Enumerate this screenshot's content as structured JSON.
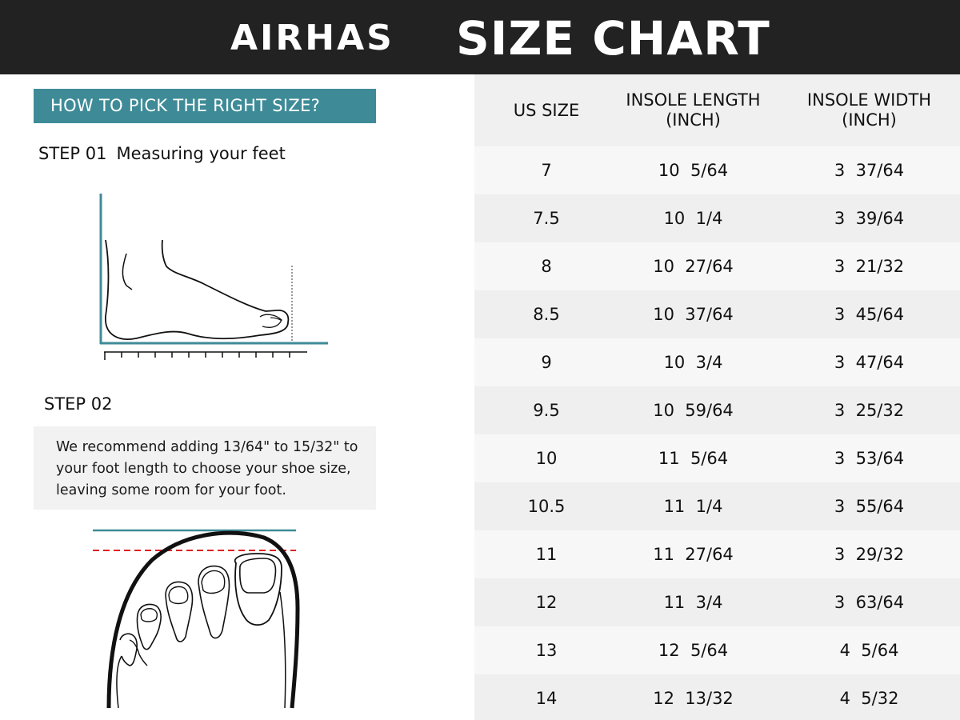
{
  "header": {
    "brand": "AIRHAS",
    "title": "SIZE CHART"
  },
  "guide": {
    "howto_label": "HOW TO PICK THE RIGHT SIZE?",
    "step1_number": "STEP 01",
    "step1_text": "Measuring your feet",
    "step2_number": "STEP 02",
    "recommend_text": "We recommend adding 13/64\" to 15/32\" to your foot length to choose your shoe size, leaving some room for your foot."
  },
  "colors": {
    "header_bg": "#222222",
    "accent_teal": "#3e8b97",
    "guide_line_red": "#e02020"
  },
  "icons": {
    "side_view": "foot-side-measure-icon",
    "top_view": "foot-toes-top-icon"
  },
  "table": {
    "headers": [
      "US SIZE",
      "INSOLE LENGTH\n(INCH)",
      "INSOLE WIDTH\n(INCH)"
    ],
    "rows": [
      [
        "7",
        "10  5/64",
        "3  37/64"
      ],
      [
        "7.5",
        "10  1/4",
        "3  39/64"
      ],
      [
        "8",
        "10  27/64",
        "3  21/32"
      ],
      [
        "8.5",
        "10  37/64",
        "3  45/64"
      ],
      [
        "9",
        "10  3/4",
        "3  47/64"
      ],
      [
        "9.5",
        "10  59/64",
        "3  25/32"
      ],
      [
        "10",
        "11  5/64",
        "3  53/64"
      ],
      [
        "10.5",
        "11  1/4",
        "3  55/64"
      ],
      [
        "11",
        "11  27/64",
        "3  29/32"
      ],
      [
        "12",
        "11  3/4",
        "3  63/64"
      ],
      [
        "13",
        "12  5/64",
        "4  5/64"
      ],
      [
        "14",
        "12  13/32",
        "4  5/32"
      ]
    ]
  }
}
